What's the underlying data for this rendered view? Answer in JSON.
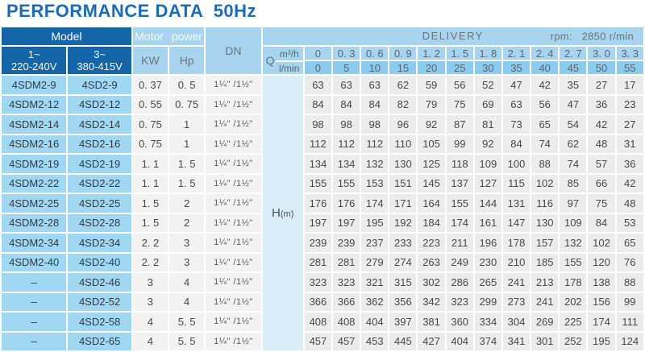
{
  "title": "PERFORMANCE DATA  50Hz",
  "colors": {
    "title_blue": "#1a6cb8",
    "header_dark_blue": "#1565a9",
    "header_light_blue": "#a7d4ee",
    "lmin_row_blue": "#8acbee",
    "model_cell_cyan": "#a0d8f4",
    "head_column_blue": "#d9edf9"
  },
  "table": {
    "header": {
      "model": "Model",
      "motor_power": "Motor power",
      "dn": "DN",
      "delivery": "DELIVERY",
      "rpm": "rpm:   2850 r/min",
      "phase1_line1": "1~",
      "phase1_line2": "220-240V",
      "phase3_line1": "3~",
      "phase3_line2": "380-415V",
      "kw": "KW",
      "hp": "Hp",
      "q": "Q",
      "m3h": "m³/h",
      "lmin": "l/min",
      "h_label": "H",
      "h_unit": "(m)"
    },
    "flow_m3h": [
      "0",
      "0. 3",
      "0. 6",
      "0. 9",
      "1. 2",
      "1. 5",
      "1. 8",
      "2. 1",
      "2. 4",
      "2. 7",
      "3. 0",
      "3. 3"
    ],
    "flow_lmin": [
      "0",
      "5",
      "10",
      "15",
      "20",
      "25",
      "30",
      "35",
      "40",
      "45",
      "50",
      "55"
    ],
    "rows": [
      {
        "model_1ph": "4SDM2-9",
        "model_3ph": "4SD2-9",
        "kw": "0. 37",
        "hp": "0. 5",
        "dn": "1¼\" /1½\"",
        "head": [
          63,
          63,
          63,
          62,
          59,
          56,
          52,
          47,
          42,
          35,
          27,
          17
        ]
      },
      {
        "model_1ph": "4SDM2-12",
        "model_3ph": "4SD2-12",
        "kw": "0. 55",
        "hp": "0. 75",
        "dn": "1¼\" /1½\"",
        "head": [
          84,
          84,
          84,
          82,
          79,
          75,
          69,
          63,
          56,
          47,
          36,
          23
        ]
      },
      {
        "model_1ph": "4SDM2-14",
        "model_3ph": "4SD2-14",
        "kw": "0. 75",
        "hp": "1",
        "dn": "1¼\" /1½\"",
        "head": [
          98,
          98,
          98,
          96,
          92,
          87,
          81,
          73,
          65,
          54,
          42,
          27
        ]
      },
      {
        "model_1ph": "4SDM2-16",
        "model_3ph": "4SD2-16",
        "kw": "0. 75",
        "hp": "1",
        "dn": "1¼\" /1½\"",
        "head": [
          112,
          112,
          112,
          110,
          105,
          99,
          92,
          84,
          74,
          62,
          48,
          31
        ]
      },
      {
        "model_1ph": "4SDM2-19",
        "model_3ph": "4SD2-19",
        "kw": "1. 1",
        "hp": "1. 5",
        "dn": "1¼\" /1½\"",
        "head": [
          134,
          134,
          132,
          130,
          125,
          118,
          109,
          100,
          88,
          74,
          57,
          36
        ]
      },
      {
        "model_1ph": "4SDM2-22",
        "model_3ph": "4SD2-22",
        "kw": "1. 1",
        "hp": "1. 5",
        "dn": "1¼\" /1½\"",
        "head": [
          155,
          155,
          153,
          151,
          145,
          137,
          127,
          115,
          102,
          85,
          66,
          42
        ]
      },
      {
        "model_1ph": "4SDM2-25",
        "model_3ph": "4SD2-25",
        "kw": "1. 5",
        "hp": "2",
        "dn": "1¼\" /1½\"",
        "head": [
          176,
          176,
          174,
          171,
          164,
          155,
          144,
          131,
          116,
          97,
          75,
          48
        ]
      },
      {
        "model_1ph": "4SDM2-28",
        "model_3ph": "4SD2-28",
        "kw": "1. 5",
        "hp": "2",
        "dn": "1¼\" /1½\"",
        "head": [
          197,
          197,
          195,
          192,
          184,
          174,
          161,
          147,
          130,
          109,
          84,
          53
        ]
      },
      {
        "model_1ph": "4SDM2-34",
        "model_3ph": "4SD2-34",
        "kw": "2. 2",
        "hp": "3",
        "dn": "1¼\" /1½\"",
        "head": [
          239,
          239,
          237,
          233,
          223,
          211,
          196,
          178,
          157,
          132,
          102,
          65
        ]
      },
      {
        "model_1ph": "4SDM2-40",
        "model_3ph": "4SD2-40",
        "kw": "2. 2",
        "hp": "3",
        "dn": "1¼\" /1½\"",
        "head": [
          281,
          281,
          279,
          274,
          263,
          249,
          230,
          210,
          185,
          155,
          120,
          76
        ]
      },
      {
        "model_1ph": "–",
        "model_3ph": "4SD2-46",
        "kw": "3",
        "hp": "4",
        "dn": "1¼\" /1½\"",
        "head": [
          323,
          323,
          321,
          315,
          302,
          286,
          265,
          241,
          213,
          178,
          138,
          88
        ]
      },
      {
        "model_1ph": "–",
        "model_3ph": "4SD2-52",
        "kw": "3",
        "hp": "4",
        "dn": "1¼\" /1½\"",
        "head": [
          366,
          366,
          362,
          356,
          342,
          323,
          299,
          273,
          241,
          202,
          156,
          99
        ]
      },
      {
        "model_1ph": "–",
        "model_3ph": "4SD2-58",
        "kw": "4",
        "hp": "5. 5",
        "dn": "1¼\" /1½\"",
        "head": [
          408,
          408,
          404,
          397,
          381,
          360,
          334,
          304,
          269,
          225,
          174,
          111
        ]
      },
      {
        "model_1ph": "–",
        "model_3ph": "4SD2-65",
        "kw": "4",
        "hp": "5. 5",
        "dn": "1¼\" /1½\"",
        "head": [
          457,
          457,
          453,
          445,
          427,
          404,
          374,
          341,
          301,
          252,
          195,
          124
        ]
      }
    ]
  }
}
